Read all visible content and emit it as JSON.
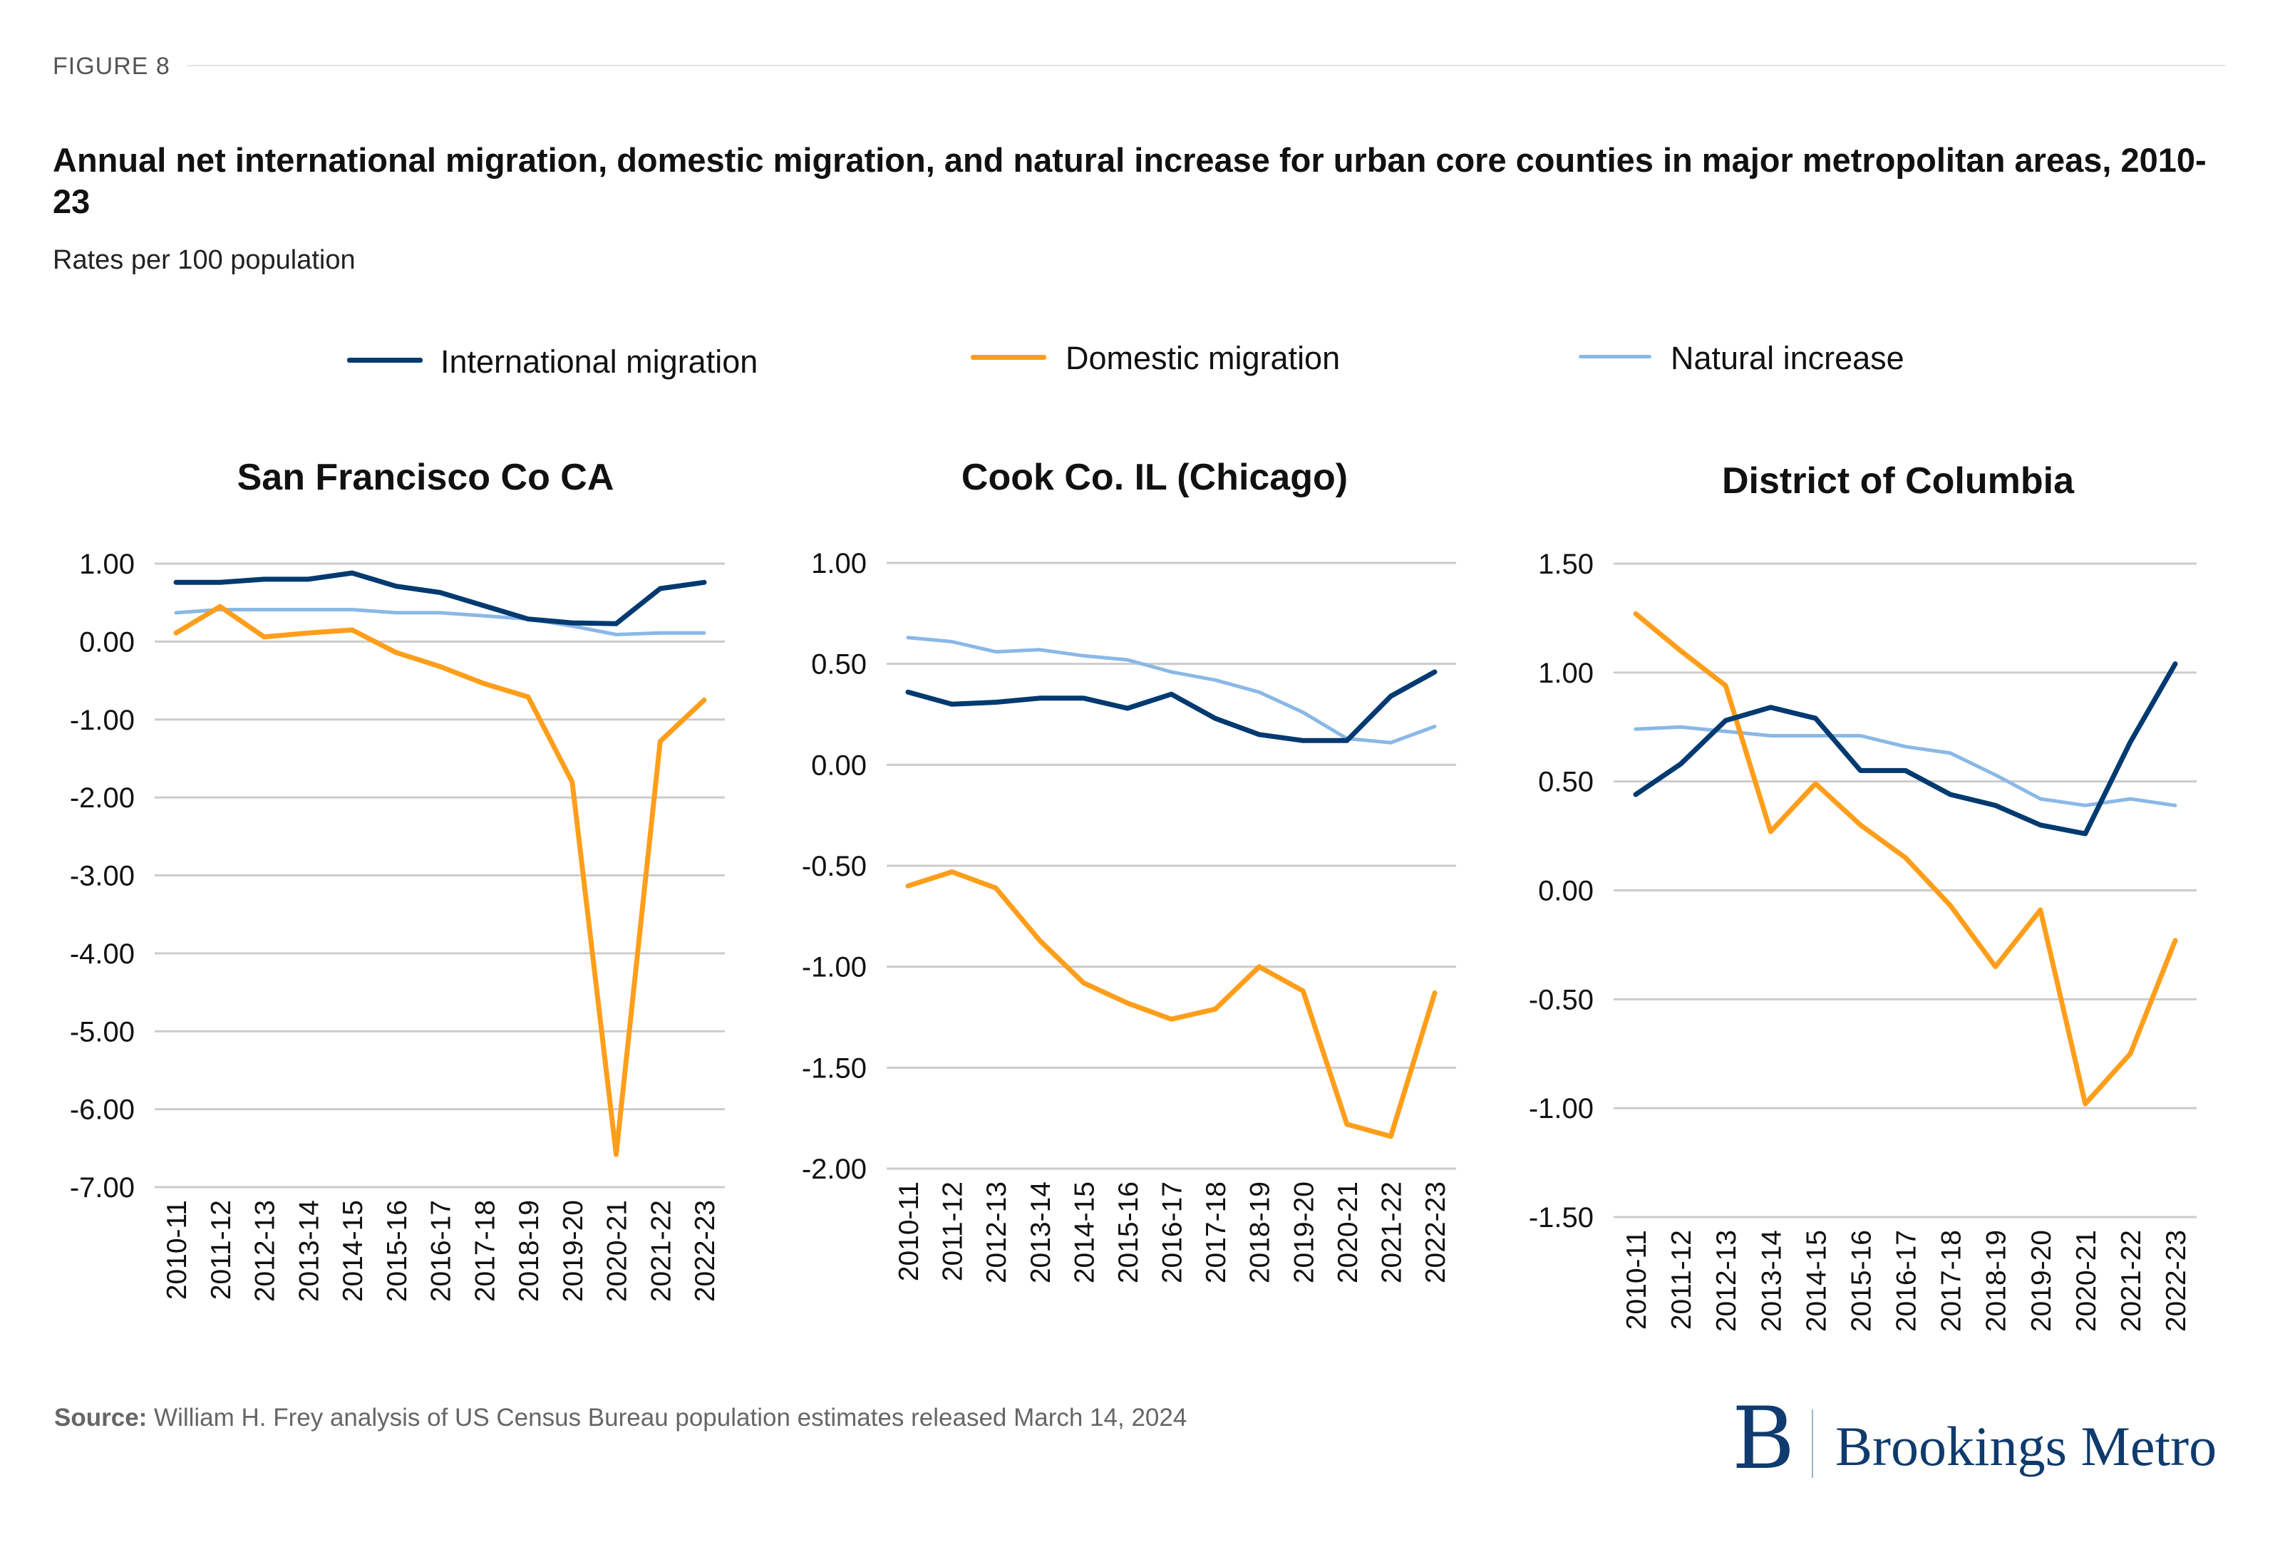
{
  "header": {
    "figure_label": "FIGURE 8",
    "title": "Annual net international migration, domestic migration, and natural increase for urban core counties in major metropolitan areas, 2010-23",
    "subtitle": "Rates per 100 population"
  },
  "legend": [
    {
      "label": "International migration",
      "color": "#003a70"
    },
    {
      "label": "Domestic migration",
      "color": "#ff9e1b"
    },
    {
      "label": "Natural increase",
      "color": "#8ab8e6"
    }
  ],
  "footer": {
    "source_label": "Source:",
    "source_text": " William H. Frey analysis of US Census Bureau population estimates released March 14, 2024",
    "logo_letter": "B",
    "logo_text": "Brookings Metro"
  },
  "chart_data": [
    {
      "type": "line",
      "title": "San Francisco Co CA",
      "categories": [
        "2010-11",
        "2011-12",
        "2012-13",
        "2013-14",
        "2014-15",
        "2015-16",
        "2016-17",
        "2017-18",
        "2018-19",
        "2019-20",
        "2020-21",
        "2021-22",
        "2022-23"
      ],
      "ylim": [
        -7,
        1
      ],
      "yticks": [
        1,
        0,
        -1,
        -2,
        -3,
        -4,
        -5,
        -6,
        -7
      ],
      "ytick_labels": [
        "1.00",
        "0.00",
        "-1.00",
        "-2.00",
        "-3.00",
        "-4.00",
        "-5.00",
        "-6.00",
        "-7.00"
      ],
      "grid": true,
      "series": [
        {
          "name": "International migration",
          "values": [
            0.76,
            0.76,
            0.8,
            0.8,
            0.88,
            0.71,
            0.63,
            0.46,
            0.29,
            0.24,
            0.23,
            0.68,
            0.76
          ]
        },
        {
          "name": "Domestic migration",
          "values": [
            0.11,
            0.45,
            0.06,
            0.11,
            0.15,
            -0.14,
            -0.32,
            -0.54,
            -0.71,
            -1.8,
            -6.58,
            -1.28,
            -0.75
          ]
        },
        {
          "name": "Natural increase",
          "values": [
            0.37,
            0.41,
            0.41,
            0.41,
            0.41,
            0.37,
            0.37,
            0.33,
            0.29,
            0.2,
            0.09,
            0.11,
            0.11
          ]
        }
      ]
    },
    {
      "type": "line",
      "title": "Cook Co. IL (Chicago)",
      "categories": [
        "2010-11",
        "2011-12",
        "2012-13",
        "2013-14",
        "2014-15",
        "2015-16",
        "2016-17",
        "2017-18",
        "2018-19",
        "2019-20",
        "2020-21",
        "2021-22",
        "2022-23"
      ],
      "ylim": [
        -2,
        1
      ],
      "yticks": [
        1,
        0.5,
        0,
        -0.5,
        -1,
        -1.5,
        -2
      ],
      "ytick_labels": [
        "1.00",
        "0.50",
        "0.00",
        "-0.50",
        "-1.00",
        "-1.50",
        "-2.00"
      ],
      "grid": true,
      "series": [
        {
          "name": "International migration",
          "values": [
            0.36,
            0.3,
            0.31,
            0.33,
            0.33,
            0.28,
            0.35,
            0.23,
            0.15,
            0.12,
            0.12,
            0.34,
            0.46
          ]
        },
        {
          "name": "Domestic migration",
          "values": [
            -0.6,
            -0.53,
            -0.61,
            -0.87,
            -1.08,
            -1.18,
            -1.26,
            -1.21,
            -1.0,
            -1.12,
            -1.78,
            -1.84,
            -1.13
          ]
        },
        {
          "name": "Natural increase",
          "values": [
            0.63,
            0.61,
            0.56,
            0.57,
            0.54,
            0.52,
            0.46,
            0.42,
            0.36,
            0.26,
            0.13,
            0.11,
            0.19
          ]
        }
      ]
    },
    {
      "type": "line",
      "title": "District of Columbia",
      "categories": [
        "2010-11",
        "2011-12",
        "2012-13",
        "2013-14",
        "2014-15",
        "2015-16",
        "2016-17",
        "2017-18",
        "2018-19",
        "2019-20",
        "2020-21",
        "2021-22",
        "2022-23"
      ],
      "ylim": [
        -1.5,
        1.5
      ],
      "yticks": [
        1.5,
        1,
        0.5,
        0,
        -0.5,
        -1,
        -1.5
      ],
      "ytick_labels": [
        "1.50",
        "1.00",
        "0.50",
        "0.00",
        "-0.50",
        "-1.00",
        "-1.50"
      ],
      "grid": true,
      "series": [
        {
          "name": "International migration",
          "values": [
            0.44,
            0.58,
            0.78,
            0.84,
            0.79,
            0.55,
            0.55,
            0.44,
            0.39,
            0.3,
            0.26,
            0.68,
            1.04
          ]
        },
        {
          "name": "Domestic migration",
          "values": [
            1.27,
            1.1,
            0.94,
            0.27,
            0.49,
            0.3,
            0.15,
            -0.07,
            -0.35,
            -0.09,
            -0.98,
            -0.75,
            -0.23
          ]
        },
        {
          "name": "Natural increase",
          "values": [
            0.74,
            0.75,
            0.73,
            0.71,
            0.71,
            0.71,
            0.66,
            0.63,
            0.53,
            0.42,
            0.39,
            0.42,
            0.39
          ]
        }
      ]
    }
  ]
}
